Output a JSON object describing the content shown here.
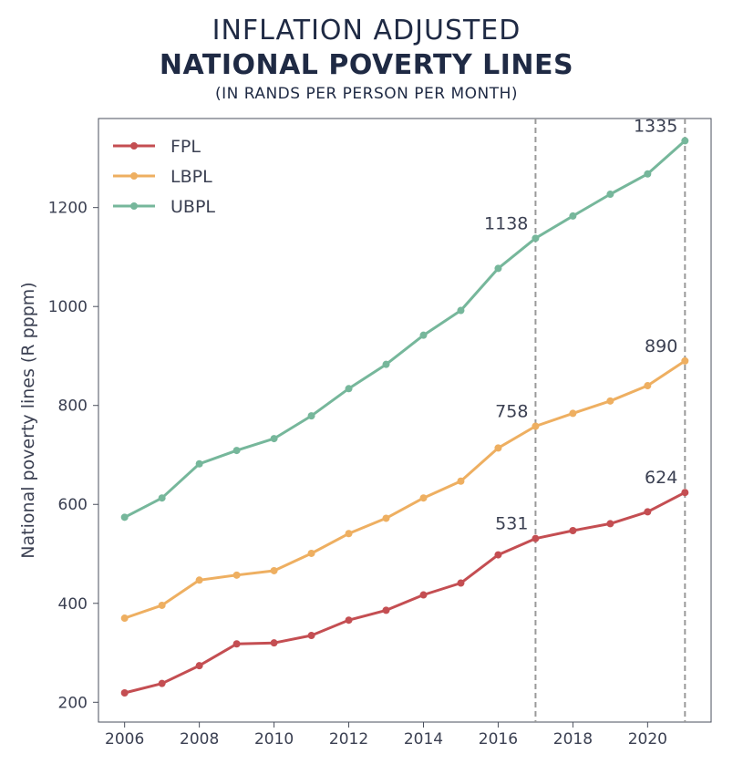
{
  "header": {
    "line1": "INFLATION ADJUSTED",
    "line2": "NATIONAL POVERTY LINES",
    "line3": "(IN RANDS PER PERSON PER MONTH)"
  },
  "chart_data": {
    "type": "line",
    "title": "INFLATION ADJUSTED NATIONAL POVERTY LINES",
    "subtitle": "(IN RANDS PER PERSON PER MONTH)",
    "xlabel": "",
    "ylabel": "National poverty lines (R pppm)",
    "x": [
      2006,
      2007,
      2008,
      2009,
      2010,
      2011,
      2012,
      2013,
      2014,
      2015,
      2016,
      2017,
      2018,
      2019,
      2020,
      2021
    ],
    "xlim": [
      2005.3,
      2021.7
    ],
    "ylim": [
      160,
      1380
    ],
    "xticks": [
      2006,
      2008,
      2010,
      2012,
      2014,
      2016,
      2018,
      2020
    ],
    "yticks": [
      200,
      400,
      600,
      800,
      1000,
      1200
    ],
    "grid": false,
    "legend_position": "top-left",
    "vlines": [
      2017,
      2021
    ],
    "series": [
      {
        "name": "FPL",
        "color": "#c44e52",
        "values": [
          219,
          238,
          274,
          318,
          320,
          335,
          366,
          386,
          417,
          441,
          498,
          531,
          547,
          561,
          585,
          624
        ]
      },
      {
        "name": "LBPL",
        "color": "#eeaf61",
        "values": [
          370,
          396,
          447,
          457,
          466,
          501,
          541,
          572,
          613,
          647,
          714,
          758,
          784,
          809,
          840,
          890
        ]
      },
      {
        "name": "UBPL",
        "color": "#76b79b",
        "values": [
          574,
          613,
          682,
          709,
          733,
          779,
          834,
          883,
          942,
          992,
          1077,
          1138,
          1183,
          1227,
          1268,
          1335
        ]
      }
    ],
    "annotations": [
      {
        "x": 2017,
        "y": 531,
        "text": "531"
      },
      {
        "x": 2017,
        "y": 758,
        "text": "758"
      },
      {
        "x": 2017,
        "y": 1138,
        "text": "1138"
      },
      {
        "x": 2021,
        "y": 624,
        "text": "624"
      },
      {
        "x": 2021,
        "y": 890,
        "text": "890"
      },
      {
        "x": 2021,
        "y": 1335,
        "text": "1335"
      }
    ]
  }
}
